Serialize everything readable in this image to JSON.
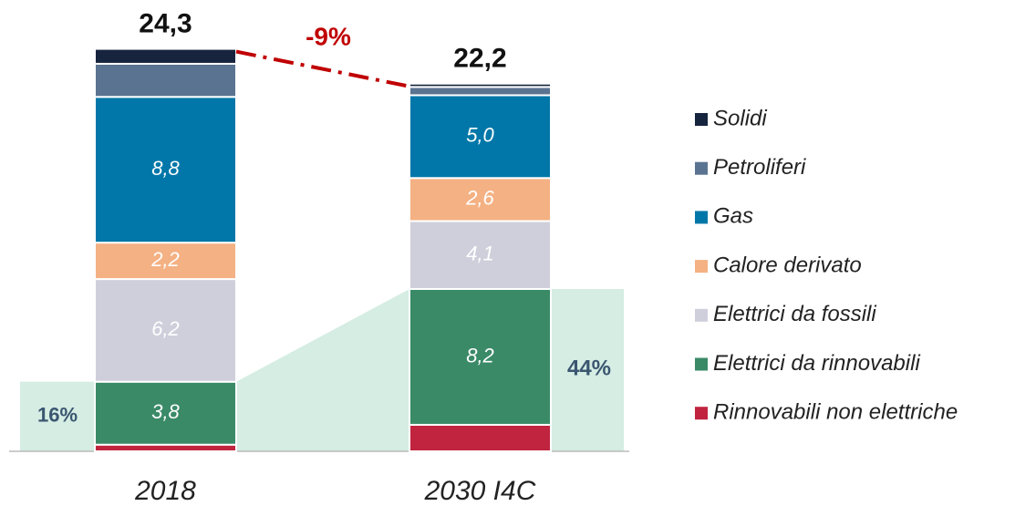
{
  "chart_data": {
    "type": "stacked_bar",
    "categories": [
      "2018",
      "2030 I4C"
    ],
    "series": [
      {
        "name": "Rinnovabili non elettriche",
        "color": "#c0243e",
        "values": [
          0.4,
          1.6
        ],
        "value_labels": [
          null,
          null
        ]
      },
      {
        "name": "Elettrici da rinnovabili",
        "color": "#3a8a67",
        "values": [
          3.8,
          8.2
        ],
        "value_labels": [
          "3,8",
          "8,2"
        ]
      },
      {
        "name": "Elettrici da fossili",
        "color": "#cfcfdc",
        "values": [
          6.2,
          4.1
        ],
        "value_labels": [
          "6,2",
          "4,1"
        ]
      },
      {
        "name": "Calore derivato",
        "color": "#f4b183",
        "values": [
          2.2,
          2.6
        ],
        "value_labels": [
          "2,2",
          "2,6"
        ]
      },
      {
        "name": "Gas",
        "color": "#0077a8",
        "values": [
          8.8,
          5.0
        ],
        "value_labels": [
          "8,8",
          "5,0"
        ]
      },
      {
        "name": "Petroliferi",
        "color": "#5a7390",
        "values": [
          2.0,
          0.5
        ],
        "value_labels": [
          null,
          null
        ]
      },
      {
        "name": "Solidi",
        "color": "#16243e",
        "values": [
          0.9,
          0.2
        ],
        "value_labels": [
          null,
          null
        ]
      }
    ],
    "totals": [
      24.3,
      22.2
    ],
    "total_labels": [
      "24,3",
      "22,2"
    ],
    "change_label": "-9%",
    "renewable_share_labels": [
      "16%",
      "44%"
    ],
    "ylim": [
      0,
      26.7
    ]
  }
}
